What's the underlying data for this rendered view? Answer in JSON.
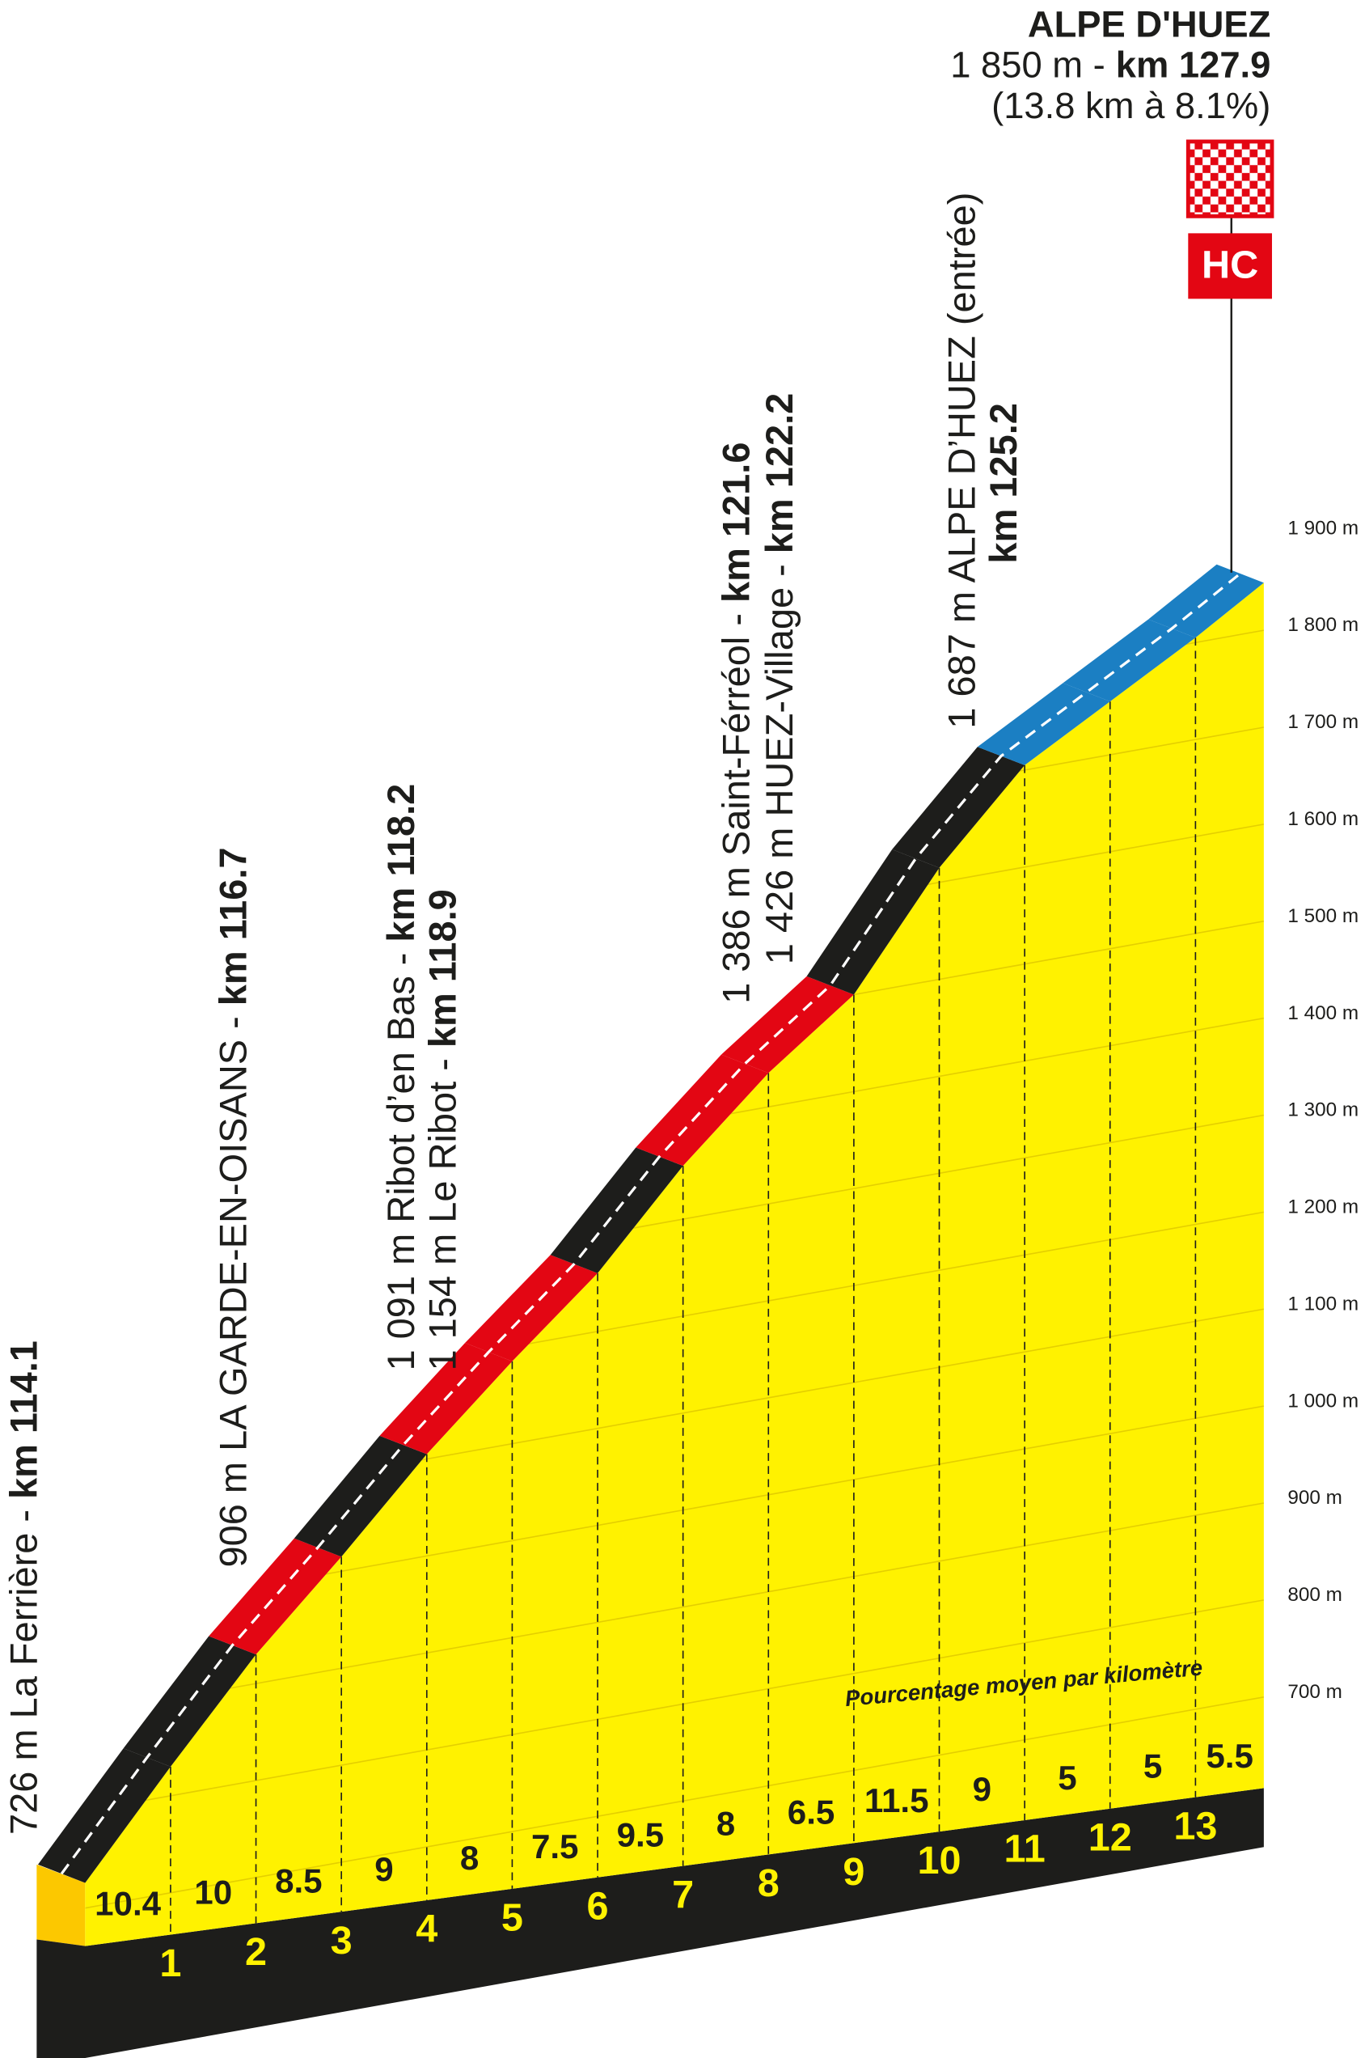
{
  "finish": {
    "name": "ALPE D'HUEZ",
    "elevation_label": "1 850 m -",
    "km_label": "km 127.9",
    "climb_label": "(13.8 km à 8.1%)",
    "category": "HC"
  },
  "waypoints": [
    {
      "lines": [
        {
          "text": "726 m La Ferrière -",
          "bold": "km 114.1"
        }
      ]
    },
    {
      "lines": [
        {
          "text": "906 m  LA GARDE-EN-OISANS -",
          "bold": "km 116.7"
        }
      ]
    },
    {
      "lines": [
        {
          "text": "1 091 m Ribot d’en Bas -",
          "bold": "km 118.2"
        },
        {
          "text": "1 154 m Le Ribot -",
          "bold": "km 118.9"
        }
      ]
    },
    {
      "lines": [
        {
          "text": "1 386 m Saint-Férréol -",
          "bold": "km 121.6"
        },
        {
          "text": "1 426 m HUEZ-Village -",
          "bold": "km 122.2"
        }
      ]
    },
    {
      "lines": [
        {
          "text": "1 687 m ALPE D’HUEZ (entrée)"
        },
        {
          "bold": "km 125.2"
        }
      ]
    }
  ],
  "chart_data": {
    "type": "profile",
    "start_elevation": 726,
    "xlim": [
      0,
      13.8
    ],
    "xticks": [
      1,
      2,
      3,
      4,
      5,
      6,
      7,
      8,
      9,
      10,
      11,
      12,
      13
    ],
    "values": [
      10.4,
      10,
      8.5,
      9,
      8,
      7.5,
      9.5,
      8,
      6.5,
      11.5,
      9,
      5,
      5,
      5.5
    ],
    "segment_colors": [
      "#1d1d1b",
      "#1d1d1b",
      "#e30613",
      "#1d1d1b",
      "#e30613",
      "#e30613",
      "#1d1d1b",
      "#e30613",
      "#e30613",
      "#1d1d1b",
      "#1d1d1b",
      "#1b7fc3",
      "#1b7fc3",
      "#1b7fc3"
    ],
    "fill_color": "#fff200",
    "annotation": "Pourcentage moyen par kilomètre",
    "ylim": [
      700,
      1900
    ],
    "yticks": [
      {
        "value": 700,
        "label": "700 m"
      },
      {
        "value": 800,
        "label": "800 m"
      },
      {
        "value": 900,
        "label": "900 m"
      },
      {
        "value": 1000,
        "label": "1 000 m"
      },
      {
        "value": 1100,
        "label": "1 100 m"
      },
      {
        "value": 1200,
        "label": "1 200 m"
      },
      {
        "value": 1300,
        "label": "1 300 m"
      },
      {
        "value": 1400,
        "label": "1 400 m"
      },
      {
        "value": 1500,
        "label": "1 500 m"
      },
      {
        "value": 1600,
        "label": "1 600 m"
      },
      {
        "value": 1700,
        "label": "1 700 m"
      },
      {
        "value": 1800,
        "label": "1 800 m"
      },
      {
        "value": 1900,
        "label": "1 900 m"
      }
    ],
    "grid": true
  }
}
